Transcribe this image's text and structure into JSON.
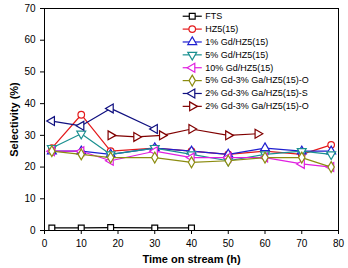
{
  "chart_data": {
    "type": "line",
    "x_label": "Time on stream (h)",
    "y_label": "Selectivity (%)",
    "xlim": [
      0,
      80
    ],
    "xticks": [
      0,
      10,
      20,
      30,
      40,
      50,
      60,
      70,
      80
    ],
    "ylim": [
      0,
      70
    ],
    "yticks": [
      0,
      10,
      20,
      30,
      40,
      50,
      60,
      70
    ],
    "legend": "upper right",
    "series": [
      {
        "name": "FTS",
        "color": "#000000",
        "marker": "square",
        "x": [
          2,
          10,
          18,
          30,
          40
        ],
        "values": [
          0.8,
          0.8,
          0.9,
          0.8,
          0.8
        ]
      },
      {
        "name": "HZ5(15)",
        "color": "#e41a1c",
        "marker": "circle",
        "x": [
          2,
          10,
          18,
          30,
          40,
          50,
          60,
          70,
          78
        ],
        "values": [
          26,
          36.5,
          25,
          26,
          25,
          24,
          25,
          24,
          27
        ]
      },
      {
        "name": "1% Gd/HZ5(15)",
        "color": "#1f1fd0",
        "marker": "triangle-up",
        "x": [
          2,
          10,
          18,
          30,
          40,
          50,
          60,
          70,
          78
        ],
        "values": [
          25,
          25,
          24,
          26,
          25,
          24,
          26,
          25,
          25
        ]
      },
      {
        "name": "5% Gd/HZ5(15)",
        "color": "#1a9090",
        "marker": "triangle-down",
        "x": [
          2,
          10,
          18,
          30,
          40,
          50,
          60,
          70,
          78
        ],
        "values": [
          26,
          30.5,
          24,
          26,
          24,
          22,
          24,
          25,
          24
        ]
      },
      {
        "name": "10% Gd/HZ5(15)",
        "color": "#e020e0",
        "marker": "triangle-left",
        "x": [
          2,
          10,
          18,
          30,
          40,
          50,
          60,
          70,
          78
        ],
        "values": [
          25,
          25,
          22,
          25,
          23,
          23,
          23,
          21,
          20
        ]
      },
      {
        "name": "5% Gd-3% Ga/HZ5(15)-O",
        "color": "#8c8c10",
        "marker": "diamond",
        "x": [
          2,
          10,
          18,
          30,
          40,
          50,
          60,
          70,
          78
        ],
        "values": [
          25,
          24,
          23,
          23,
          21.5,
          22,
          23,
          23,
          20
        ]
      },
      {
        "name": "2% Gd-3% Ga/HZ5(15)-S",
        "color": "#101080",
        "marker": "triangle-left",
        "x": [
          2,
          10,
          18,
          30
        ],
        "values": [
          34.5,
          33,
          38.5,
          32
        ]
      },
      {
        "name": "2% Gd-3% Ga/HZ5(15)-O",
        "color": "#800000",
        "marker": "triangle-right",
        "x": [
          18,
          25,
          32,
          40,
          50,
          58
        ],
        "values": [
          30,
          29.5,
          30,
          32,
          30,
          30.5
        ]
      }
    ]
  }
}
